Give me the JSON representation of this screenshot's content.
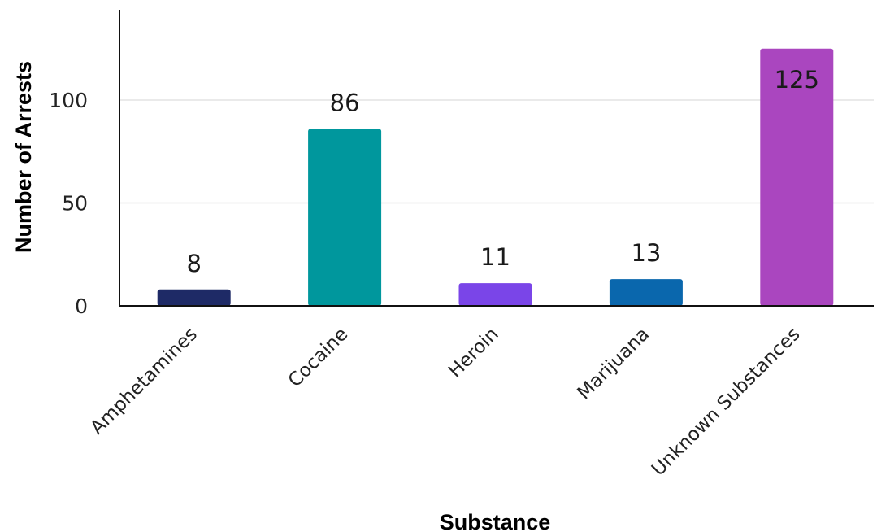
{
  "chart_data": {
    "type": "bar",
    "title": "",
    "xlabel": "Substance",
    "ylabel": "Number of Arrests",
    "categories": [
      "Amphetamines",
      "Cocaine",
      "Heroin",
      "Marijuana",
      "Unknown Substances"
    ],
    "values": [
      8,
      86,
      11,
      13,
      125
    ],
    "colors": [
      "#1e2a66",
      "#00979d",
      "#7a45e8",
      "#0a67ad",
      "#aa46bf"
    ],
    "ylim": [
      0,
      140
    ],
    "yticks": [
      0,
      50,
      100
    ],
    "grid": true,
    "legend": "none"
  }
}
